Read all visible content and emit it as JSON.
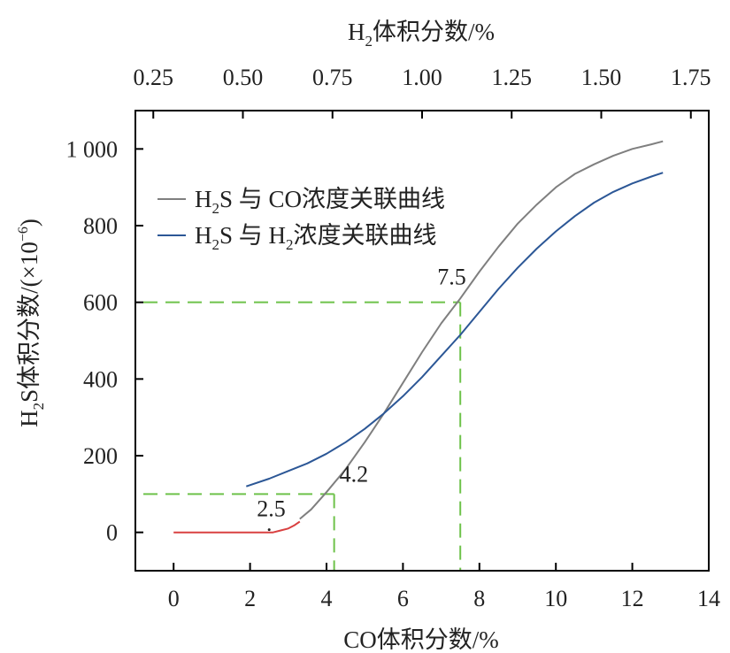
{
  "chart_data": {
    "type": "line",
    "title": "",
    "xlabel": "CO体积分数/%",
    "xlim": [
      -1,
      14
    ],
    "xticks": [
      0,
      2,
      4,
      6,
      8,
      10,
      12,
      14
    ],
    "x2label": {
      "prefix": "H",
      "sub": "2",
      "suffix": "体积分数/%"
    },
    "x2lim": [
      0.2,
      1.8
    ],
    "x2ticks": [
      "0.25",
      "0.50",
      "0.75",
      "1.00",
      "1.25",
      "1.50",
      "1.75"
    ],
    "ylabel": {
      "prefix": "H",
      "sub": "2",
      "mid": "S体积分数/(×10",
      "sup": "−6",
      "suffix": ")"
    },
    "ylim": [
      -100,
      1100
    ],
    "yticks": [
      {
        "value": 0,
        "label": "0"
      },
      {
        "value": 200,
        "label": "200"
      },
      {
        "value": 400,
        "label": "400"
      },
      {
        "value": 600,
        "label": "600"
      },
      {
        "value": 800,
        "label": "800"
      },
      {
        "value": 1000,
        "label": "1 000"
      }
    ],
    "grid": false,
    "legend": "top-left",
    "series": [
      {
        "name": {
          "prefix": "H",
          "sub": "2",
          "suffix": "S 与 CO浓度关联曲线"
        },
        "color": "#7f7f7f",
        "x": [
          3.3,
          3.6,
          4.0,
          4.5,
          5.0,
          5.5,
          6.0,
          6.5,
          7.0,
          7.5,
          8.0,
          8.5,
          9.0,
          9.5,
          10.0,
          10.5,
          11.0,
          11.5,
          12.0,
          12.5,
          12.8
        ],
        "y": [
          35,
          60,
          105,
          165,
          235,
          310,
          390,
          470,
          545,
          610,
          680,
          745,
          805,
          855,
          900,
          935,
          960,
          982,
          1000,
          1012,
          1020
        ]
      },
      {
        "name": {
          "prefix": "H",
          "sub": "2",
          "suffix": "浓度关联曲线"
        },
        "name_pre": "H",
        "name_pre_sub": "2",
        "name_mid": "S 与 H",
        "color": "#2c5796",
        "x": [
          1.9,
          2.5,
          3.0,
          3.5,
          4.0,
          4.5,
          5.0,
          5.5,
          6.0,
          6.5,
          7.0,
          7.5,
          8.0,
          8.5,
          9.0,
          9.5,
          10.0,
          10.5,
          11.0,
          11.5,
          12.0,
          12.5,
          12.8
        ],
        "y": [
          120,
          140,
          160,
          180,
          205,
          235,
          270,
          310,
          355,
          405,
          460,
          515,
          575,
          635,
          690,
          740,
          785,
          825,
          860,
          888,
          910,
          928,
          938
        ]
      },
      {
        "color": "#d94040",
        "x": [
          0,
          1.0,
          2.0,
          2.6,
          2.8,
          3.0,
          3.15,
          3.3
        ],
        "y": [
          0,
          0,
          0,
          0,
          5,
          10,
          18,
          28
        ]
      }
    ],
    "guides": [
      {
        "x": 4.2,
        "y": 100
      },
      {
        "x": 7.5,
        "y": 600
      }
    ],
    "annotations": [
      {
        "text": "2.5",
        "x": 2.5,
        "y": 0
      },
      {
        "text": "4.2",
        "x": 4.2,
        "y": 100
      },
      {
        "text": "7.5",
        "x": 7.5,
        "y": 600
      }
    ],
    "colors": {
      "guide": "#6ec24a",
      "axis": "#000000"
    }
  }
}
